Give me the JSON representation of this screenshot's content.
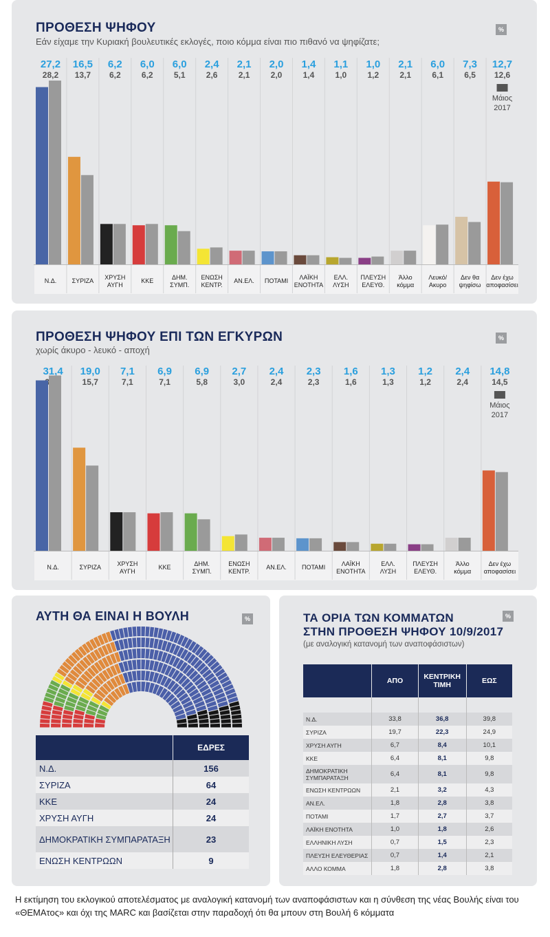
{
  "legend_label": "Μάιος\n2017",
  "pct_badge": "%",
  "chart_data": [
    {
      "type": "bar",
      "title": "ΠΡΟΘΕΣΗ ΨΗΦΟΥ",
      "subtitle": "Εάν είχαμε την Κυριακή βουλευτικές εκλογές, ποιο κόμμα είναι πιο πιθανό να ψηφίζατε;",
      "categories": [
        "Ν.Δ.",
        "ΣΥΡΙΖΑ",
        "ΧΡΥΣΗ\nΑΥΓΗ",
        "ΚΚΕ",
        "ΔΗΜ.\nΣΥΜΠ.",
        "ΕΝΩΣΗ\nΚΕΝΤΡ.",
        "ΑΝ.ΕΛ.",
        "ΠΟΤΑΜΙ",
        "ΛΑΪΚΗ\nΕΝΟΤΗΤΑ",
        "ΕΛΛ.\nΛΥΣΗ",
        "ΠΛΕΥΣΗ\nΕΛΕΥΘ.",
        "Άλλο\nκόμμα",
        "Λευκό/\nΑκυρο",
        "Δεν θα\nψηφίσω",
        "Δεν έχω\nαποφασίσει"
      ],
      "current": [
        "27,2",
        "16,5",
        "6,2",
        "6,0",
        "6,0",
        "2,4",
        "2,1",
        "2,0",
        "1,4",
        "1,1",
        "1,0",
        "2,1",
        "6,0",
        "7,3",
        "12,7"
      ],
      "previous": [
        "28,2",
        "13,7",
        "6,2",
        "6,2",
        "5,1",
        "2,6",
        "2,1",
        "2,0",
        "1,4",
        "1,0",
        "1,2",
        "2,1",
        "6,1",
        "6,5",
        "12,6"
      ],
      "colors": [
        "#4865a6",
        "#e0963f",
        "#222222",
        "#d63c3c",
        "#6aab4e",
        "#f4e534",
        "#d06b76",
        "#5d94cc",
        "#6a4a3c",
        "#b8a62e",
        "#8a3f86",
        "#d1cfcf",
        "#f4f2f0",
        "#d6c3a6",
        "#d8603a"
      ],
      "previous_color": "#9a9a9a",
      "ylim": [
        0,
        30
      ],
      "legend": "Μάιος 2017"
    },
    {
      "type": "bar",
      "title": "ΠΡΟΘΕΣΗ ΨΗΦΟΥ ΕΠΙ ΤΩΝ ΕΓΚΥΡΩΝ",
      "subtitle": "χωρίς άκυρο - λευκό - αποχή",
      "categories": [
        "Ν.Δ.",
        "ΣΥΡΙΖΑ",
        "ΧΡΥΣΗ\nΑΥΓΗ",
        "ΚΚΕ",
        "ΔΗΜ.\nΣΥΜΠ.",
        "ΕΝΩΣΗ\nΚΕΝΤΡ.",
        "ΑΝ.ΕΛ.",
        "ΠΟΤΑΜΙ",
        "ΛΑΪΚΗ\nΕΝΟΤΗΤΑ",
        "ΕΛΛ.\nΛΥΣΗ",
        "ΠΛΕΥΣΗ\nΕΛΕΥΘ.",
        "Άλλο\nκόμμα",
        "Δεν έχω\nαποφασίσει"
      ],
      "current": [
        "31,4",
        "19,0",
        "7,1",
        "6,9",
        "6,9",
        "2,7",
        "2,4",
        "2,3",
        "1,6",
        "1,3",
        "1,2",
        "2,4",
        "14,8"
      ],
      "previous": [
        "32,3",
        "15,7",
        "7,1",
        "7,1",
        "5,8",
        "3,0",
        "2,4",
        "2,3",
        "1,6",
        "1,3",
        "1,2",
        "2,4",
        "14,5"
      ],
      "colors": [
        "#4865a6",
        "#e0963f",
        "#222222",
        "#d63c3c",
        "#6aab4e",
        "#f4e534",
        "#d06b76",
        "#5d94cc",
        "#6a4a3c",
        "#b8a62e",
        "#8a3f86",
        "#d1cfcf",
        "#d8603a"
      ],
      "previous_color": "#9a9a9a",
      "ylim": [
        0,
        34
      ],
      "legend": "Μάιος 2017"
    },
    {
      "type": "pie",
      "title": "ΑΥΤΗ ΘΑ ΕΙΝΑΙ Η ΒΟΥΛΗ",
      "header": "ΕΔΡΕΣ",
      "parties": [
        {
          "name": "Ν.Δ.",
          "seats": 156,
          "color": "#4b5fa8"
        },
        {
          "name": "ΣΥΡΙΖΑ",
          "seats": 64,
          "color": "#e08a3c"
        },
        {
          "name": "ΚΚΕ",
          "seats": 24,
          "color": "#d63c3c"
        },
        {
          "name": "ΧΡΥΣΗ ΑΥΓΗ",
          "seats": 24,
          "color": "#151515"
        },
        {
          "name": "ΔΗΜΟΚΡΑΤΙΚΗ  ΣΥΜΠΑΡΑΤΑΞΗ",
          "seats": 23,
          "color": "#6aab4e"
        },
        {
          "name": "ΕΝΩΣΗ ΚΕΝΤΡΩΩΝ",
          "seats": 9,
          "color": "#f4e534"
        }
      ]
    },
    {
      "type": "table",
      "title_line1": "ΤΑ ΟΡΙΑ ΤΩΝ ΚΟΜΜΑΤΩΝ",
      "title_line2": "ΣΤΗΝ ΠΡΟΘΕΣΗ ΨΗΦΟΥ 10/9/2017",
      "subtitle": "(με αναλογική κατανομή των αναποφάσιστων)",
      "columns": [
        "ΑΠΟ",
        "ΚΕΝΤΡΙΚΗ\nΤΙΜΗ",
        "ΕΩΣ"
      ],
      "rows": [
        {
          "name": "Ν.Δ.",
          "from": "33,8",
          "center": "36,8",
          "to": "39,8"
        },
        {
          "name": "ΣΥΡΙΖΑ",
          "from": "19,7",
          "center": "22,3",
          "to": "24,9"
        },
        {
          "name": "ΧΡΥΣΗ ΑΥΓΗ",
          "from": "6,7",
          "center": "8,4",
          "to": "10,1"
        },
        {
          "name": "ΚΚΕ",
          "from": "6,4",
          "center": "8,1",
          "to": "9,8"
        },
        {
          "name": "ΔΗΜΟΚΡΑΤΙΚΗ\nΣΥΜΠΑΡΑΤΑΞΗ",
          "from": "6,4",
          "center": "8,1",
          "to": "9,8"
        },
        {
          "name": "ΕΝΩΣΗ ΚΕΝΤΡΩΩΝ",
          "from": "2,1",
          "center": "3,2",
          "to": "4,3"
        },
        {
          "name": "ΑΝ.ΕΛ.",
          "from": "1,8",
          "center": "2,8",
          "to": "3,8"
        },
        {
          "name": "ΠΟΤΑΜΙ",
          "from": "1,7",
          "center": "2,7",
          "to": "3,7"
        },
        {
          "name": "ΛΑΪΚΗ ΕΝΟΤΗΤΑ",
          "from": "1,0",
          "center": "1,8",
          "to": "2,6"
        },
        {
          "name": "ΕΛΛΗΝΙΚΗ ΛΥΣΗ",
          "from": "0,7",
          "center": "1,5",
          "to": "2,3"
        },
        {
          "name": "ΠΛΕΥΣΗ ΕΛΕΥΘΕΡΙΑΣ",
          "from": "0,7",
          "center": "1,4",
          "to": "2,1"
        },
        {
          "name": "ΑΛΛΟ ΚΟΜΜΑ",
          "from": "1,8",
          "center": "2,8",
          "to": "3,8"
        }
      ]
    }
  ],
  "footnote": "Η εκτίμηση του εκλογικού αποτελέσματος με αναλογική κατανομή των αναποφάσιστων και η σύνθεση της νέας Βουλής είναι του «ΘΕΜΑτος» και όχι της MARC και βασίζεται στην παραδοχή ότι θα μπουν στη Βουλή 6 κόμματα"
}
